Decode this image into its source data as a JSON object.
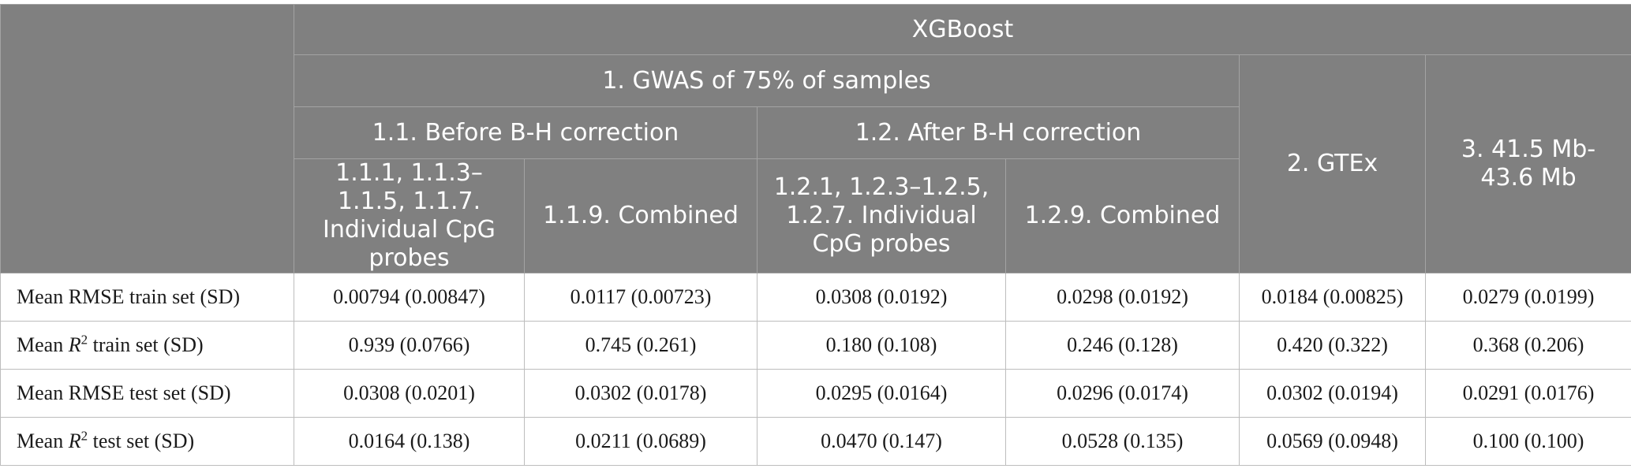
{
  "header": {
    "model": "XGBoost",
    "group_gwas": "1. GWAS of 75% of samples",
    "group_before": "1.1. Before B-H correction",
    "group_after": "1.2. After B-H correction",
    "col_gtex": "2. GTEx",
    "col_region": "3. 41.5 Mb-43.6 Mb",
    "cols": [
      "1.1.1, 1.1.3–1.1.5, 1.1.7. Individual CpG probes",
      "1.1.9. Combined",
      "1.2.1, 1.2.3–1.2.5, 1.2.7. Individual CpG probes",
      "1.2.9. Combined"
    ]
  },
  "rows": [
    {
      "label_pre": "Mean RMSE train set (SD)",
      "label_italic": "",
      "label_sup": "",
      "label_post": "",
      "values": [
        "0.00794 (0.00847)",
        "0.0117 (0.00723)",
        "0.0308 (0.0192)",
        "0.0298 (0.0192)",
        "0.0184 (0.00825)",
        "0.0279 (0.0199)"
      ]
    },
    {
      "label_pre": "Mean ",
      "label_italic": "R",
      "label_sup": "2",
      "label_post": " train set (SD)",
      "values": [
        "0.939 (0.0766)",
        "0.745 (0.261)",
        "0.180 (0.108)",
        "0.246 (0.128)",
        "0.420 (0.322)",
        "0.368 (0.206)"
      ]
    },
    {
      "label_pre": "Mean RMSE test set (SD)",
      "label_italic": "",
      "label_sup": "",
      "label_post": "",
      "values": [
        "0.0308 (0.0201)",
        "0.0302 (0.0178)",
        "0.0295 (0.0164)",
        "0.0296 (0.0174)",
        "0.0302 (0.0194)",
        "0.0291 (0.0176)"
      ]
    },
    {
      "label_pre": "Mean ",
      "label_italic": "R",
      "label_sup": "2",
      "label_post": " test set (SD)",
      "values": [
        "0.0164 (0.138)",
        "0.0211 (0.0689)",
        "0.0470 (0.147)",
        "0.0528 (0.135)",
        "0.0569 (0.0948)",
        "0.100 (0.100)"
      ]
    }
  ]
}
